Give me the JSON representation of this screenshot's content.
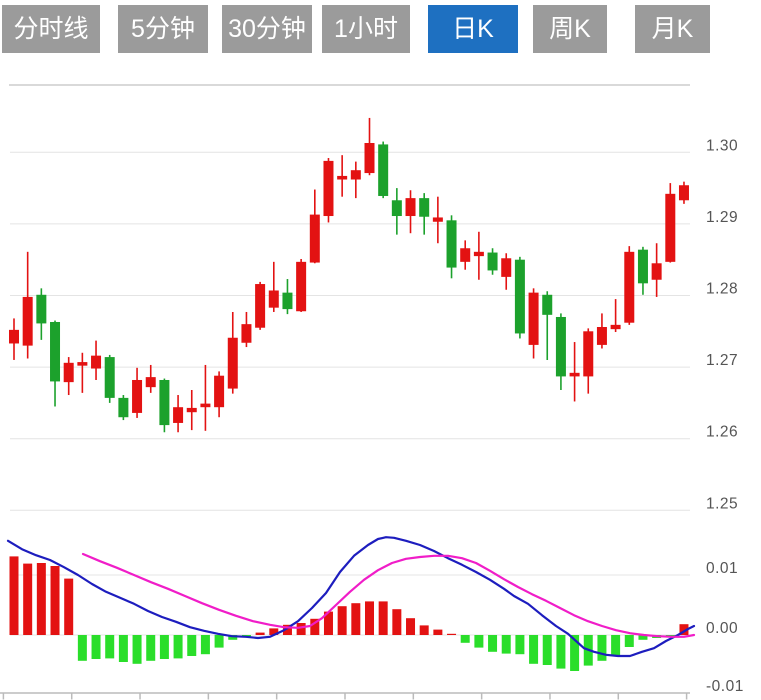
{
  "header": {
    "tabs": [
      {
        "label": "分时线",
        "active": false
      },
      {
        "label": "5分钟",
        "active": false
      },
      {
        "label": "30分钟",
        "active": false
      },
      {
        "label": "1小时",
        "active": false
      },
      {
        "label": "日K",
        "active": true
      },
      {
        "label": "周K",
        "active": false
      },
      {
        "label": "月K",
        "active": false
      }
    ]
  },
  "colors": {
    "tab_bg": "#9b9b9b",
    "tab_active_bg": "#1e70c1",
    "tab_text": "#ffffff",
    "candle_up": "#e31212",
    "candle_down": "#1ca12c",
    "hist_up": "#e31212",
    "hist_down": "#2ade2a",
    "dif_line": "#1d1dbe",
    "dea_line": "#f01dc8",
    "grid": "#e4e4e4",
    "axis_text": "#555555",
    "axis_line": "#bbbbbb",
    "separator": "#d9d9d9"
  },
  "price_axis": {
    "labels": [
      "1.30",
      "1.29",
      "1.28",
      "1.27",
      "1.26",
      "1.25"
    ],
    "values": [
      1.3,
      1.29,
      1.28,
      1.27,
      1.26,
      1.25
    ]
  },
  "indicator_axis": {
    "labels": [
      "0.01",
      "0.00",
      "-0.01"
    ],
    "values": [
      0.01,
      0.0,
      -0.01
    ]
  },
  "chart_data": {
    "type": "candlestick",
    "title": "Daily K-line chart with MACD indicator",
    "selected_period": "日K",
    "candle_format": "ohlc",
    "price_pane": {
      "ylim": [
        1.2525,
        1.3095
      ],
      "grid_values": [
        1.3,
        1.29,
        1.28,
        1.27,
        1.26,
        1.25
      ],
      "candles": [
        [
          1.2733,
          1.2768,
          1.271,
          1.2752
        ],
        [
          1.273,
          1.2861,
          1.2712,
          1.2798
        ],
        [
          1.2801,
          1.281,
          1.2738,
          1.2761
        ],
        [
          1.2763,
          1.2765,
          1.2645,
          1.268
        ],
        [
          1.2679,
          1.2714,
          1.2661,
          1.2706
        ],
        [
          1.2702,
          1.272,
          1.2664,
          1.2707
        ],
        [
          1.2698,
          1.2737,
          1.2682,
          1.2716
        ],
        [
          1.2714,
          1.2717,
          1.265,
          1.2657
        ],
        [
          1.2657,
          1.2661,
          1.2626,
          1.263
        ],
        [
          1.2636,
          1.2699,
          1.2629,
          1.2682
        ],
        [
          1.2672,
          1.2703,
          1.2664,
          1.2686
        ],
        [
          1.2682,
          1.2684,
          1.2609,
          1.2619
        ],
        [
          1.2622,
          1.2661,
          1.2609,
          1.2644
        ],
        [
          1.2637,
          1.2668,
          1.2612,
          1.2643
        ],
        [
          1.2644,
          1.2703,
          1.2611,
          1.2649
        ],
        [
          1.2644,
          1.2694,
          1.263,
          1.2688
        ],
        [
          1.267,
          1.2777,
          1.2663,
          1.2741
        ],
        [
          1.2734,
          1.2777,
          1.2728,
          1.276
        ],
        [
          1.2755,
          1.2819,
          1.2752,
          1.2816
        ],
        [
          1.2783,
          1.2847,
          1.2777,
          1.2807
        ],
        [
          1.2804,
          1.2823,
          1.2774,
          1.2781
        ],
        [
          1.2778,
          1.2851,
          1.2777,
          1.2847
        ],
        [
          1.2846,
          1.2948,
          1.2845,
          1.2913
        ],
        [
          1.2911,
          1.2992,
          1.2902,
          1.2988
        ],
        [
          1.2962,
          1.2996,
          1.2938,
          1.2967
        ],
        [
          1.2962,
          1.2987,
          1.2936,
          1.2975
        ],
        [
          1.2971,
          1.3048,
          1.2968,
          1.3013
        ],
        [
          1.3011,
          1.3015,
          1.2936,
          1.2939
        ],
        [
          1.2933,
          1.295,
          1.2885,
          1.2911
        ],
        [
          1.2911,
          1.2947,
          1.2887,
          1.2936
        ],
        [
          1.2936,
          1.2943,
          1.2885,
          1.291
        ],
        [
          1.2903,
          1.2938,
          1.2873,
          1.2909
        ],
        [
          1.2905,
          1.2912,
          1.2824,
          1.2839
        ],
        [
          1.2847,
          1.2877,
          1.2836,
          1.2866
        ],
        [
          1.2855,
          1.2889,
          1.2822,
          1.2861
        ],
        [
          1.286,
          1.2866,
          1.2829,
          1.2835
        ],
        [
          1.2826,
          1.2859,
          1.2808,
          1.2852
        ],
        [
          1.285,
          1.2854,
          1.274,
          1.2747
        ],
        [
          1.2731,
          1.281,
          1.2712,
          1.2804
        ],
        [
          1.2801,
          1.2806,
          1.271,
          1.2773
        ],
        [
          1.277,
          1.2775,
          1.2668,
          1.2687
        ],
        [
          1.2687,
          1.2735,
          1.2652,
          1.2692
        ],
        [
          1.2687,
          1.2754,
          1.2663,
          1.275
        ],
        [
          1.2731,
          1.2775,
          1.2726,
          1.2756
        ],
        [
          1.2753,
          1.2795,
          1.2749,
          1.2759
        ],
        [
          1.2762,
          1.2869,
          1.2759,
          1.2861
        ],
        [
          1.2864,
          1.2868,
          1.2801,
          1.2817
        ],
        [
          1.2822,
          1.2873,
          1.2798,
          1.2845
        ],
        [
          1.2847,
          1.2957,
          1.2846,
          1.2942
        ],
        [
          1.2933,
          1.2959,
          1.2928,
          1.2954
        ]
      ]
    },
    "macd_pane": {
      "ylim": [
        -0.011,
        0.0175
      ],
      "grid_values": [
        0.01,
        0.0,
        -0.01
      ],
      "histogram": [
        0.0131,
        0.0119,
        0.012,
        0.0115,
        0.0094,
        -0.0043,
        -0.004,
        -0.0039,
        -0.0045,
        -0.0048,
        -0.0043,
        -0.004,
        -0.0039,
        -0.0035,
        -0.0032,
        -0.0021,
        -0.0008,
        -0.0003,
        0.0004,
        0.0011,
        0.0017,
        0.002,
        0.0027,
        0.0039,
        0.0048,
        0.0053,
        0.0056,
        0.0056,
        0.0043,
        0.0028,
        0.0016,
        0.0009,
        0.0002,
        -0.0013,
        -0.0021,
        -0.0028,
        -0.0031,
        -0.0032,
        -0.0048,
        -0.005,
        -0.0056,
        -0.006,
        -0.0051,
        -0.0043,
        -0.0034,
        -0.002,
        -0.0008,
        -0.0005,
        -0.0003,
        0.0018
      ],
      "dif": [
        [
          8,
          0.0157
        ],
        [
          22,
          0.0143
        ],
        [
          36,
          0.0133
        ],
        [
          50,
          0.0125
        ],
        [
          64,
          0.0113
        ],
        [
          78,
          0.01
        ],
        [
          92,
          0.0085
        ],
        [
          106,
          0.0072
        ],
        [
          120,
          0.0062
        ],
        [
          134,
          0.0052
        ],
        [
          148,
          0.004
        ],
        [
          162,
          0.003
        ],
        [
          176,
          0.0022
        ],
        [
          190,
          0.0013
        ],
        [
          204,
          0.0007
        ],
        [
          218,
          0.0002
        ],
        [
          232,
          -0.0002
        ],
        [
          246,
          -0.0003
        ],
        [
          258,
          -0.0005
        ],
        [
          270,
          -0.0003
        ],
        [
          284,
          0.0008
        ],
        [
          298,
          0.0023
        ],
        [
          312,
          0.0045
        ],
        [
          326,
          0.007
        ],
        [
          340,
          0.0105
        ],
        [
          354,
          0.0132
        ],
        [
          368,
          0.015
        ],
        [
          378,
          0.016
        ],
        [
          386,
          0.0163
        ],
        [
          394,
          0.0162
        ],
        [
          406,
          0.0157
        ],
        [
          420,
          0.015
        ],
        [
          434,
          0.014
        ],
        [
          448,
          0.0128
        ],
        [
          462,
          0.0117
        ],
        [
          476,
          0.0105
        ],
        [
          490,
          0.0092
        ],
        [
          504,
          0.0077
        ],
        [
          514,
          0.0065
        ],
        [
          528,
          0.0052
        ],
        [
          542,
          0.0033
        ],
        [
          556,
          0.0015
        ],
        [
          568,
          0.0002
        ],
        [
          576,
          -0.001
        ],
        [
          584,
          -0.0022
        ],
        [
          594,
          -0.0028
        ],
        [
          606,
          -0.0033
        ],
        [
          618,
          -0.0035
        ],
        [
          630,
          -0.0035
        ],
        [
          642,
          -0.0028
        ],
        [
          654,
          -0.0022
        ],
        [
          666,
          -0.001
        ],
        [
          678,
          0.0
        ],
        [
          688,
          0.001
        ],
        [
          694,
          0.0015
        ]
      ],
      "dea": [
        [
          83,
          0.0135
        ],
        [
          100,
          0.0123
        ],
        [
          117,
          0.0112
        ],
        [
          134,
          0.01
        ],
        [
          151,
          0.0088
        ],
        [
          168,
          0.0077
        ],
        [
          185,
          0.0065
        ],
        [
          202,
          0.0053
        ],
        [
          219,
          0.0042
        ],
        [
          236,
          0.0032
        ],
        [
          253,
          0.0023
        ],
        [
          270,
          0.0017
        ],
        [
          284,
          0.0013
        ],
        [
          298,
          0.0012
        ],
        [
          310,
          0.0015
        ],
        [
          322,
          0.0028
        ],
        [
          336,
          0.005
        ],
        [
          350,
          0.0072
        ],
        [
          364,
          0.0092
        ],
        [
          378,
          0.0108
        ],
        [
          392,
          0.012
        ],
        [
          406,
          0.0127
        ],
        [
          420,
          0.013
        ],
        [
          434,
          0.0132
        ],
        [
          448,
          0.0132
        ],
        [
          462,
          0.0128
        ],
        [
          476,
          0.012
        ],
        [
          490,
          0.0107
        ],
        [
          504,
          0.0093
        ],
        [
          518,
          0.008
        ],
        [
          532,
          0.0068
        ],
        [
          546,
          0.0057
        ],
        [
          560,
          0.0045
        ],
        [
          574,
          0.0033
        ],
        [
          588,
          0.0023
        ],
        [
          602,
          0.0015
        ],
        [
          616,
          0.0008
        ],
        [
          630,
          0.0003
        ],
        [
          644,
          0.0
        ],
        [
          658,
          -0.0002
        ],
        [
          672,
          -0.0003
        ],
        [
          684,
          -0.0003
        ],
        [
          694,
          0.0
        ]
      ]
    },
    "x_axis": {
      "tick_count": 11
    }
  }
}
